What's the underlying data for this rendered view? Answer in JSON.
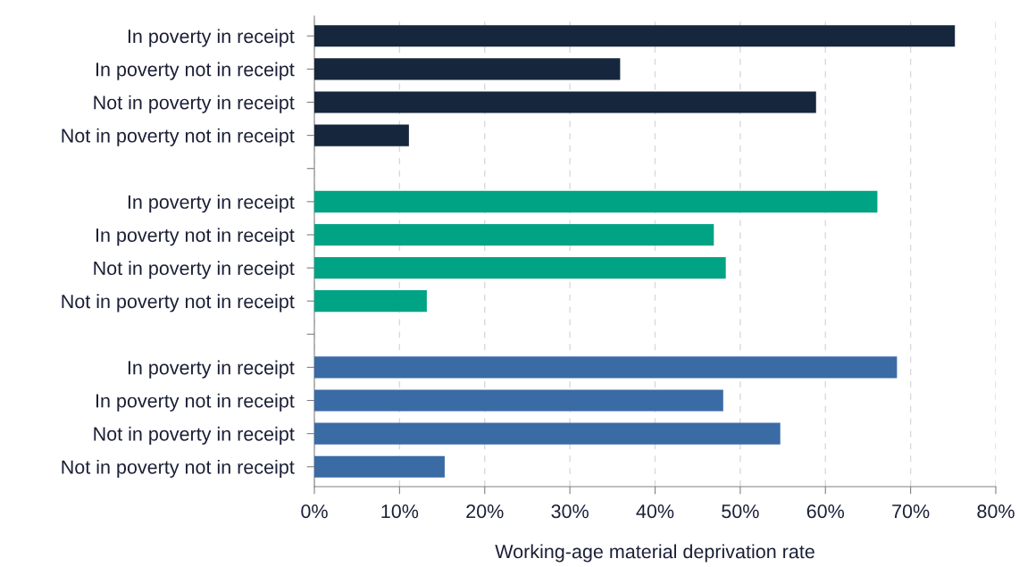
{
  "chart_data": {
    "type": "bar",
    "orientation": "horizontal",
    "xlabel": "Working-age material deprivation rate",
    "categories": [
      "In poverty in receipt",
      "In poverty not in receipt",
      "Not in poverty in receipt",
      "Not in poverty not in receipt",
      null,
      "In poverty in receipt",
      "In poverty not in receipt",
      "Not in poverty in receipt",
      "Not in poverty not in receipt",
      null,
      "In poverty in receipt",
      "In poverty not in receipt",
      "Not in poverty in receipt",
      "Not in poverty not in receipt"
    ],
    "values": [
      75.2,
      35.9,
      58.9,
      11.1,
      null,
      66.1,
      46.9,
      48.3,
      13.2,
      null,
      68.4,
      48.0,
      54.7,
      15.3
    ],
    "colors": [
      "#16263d",
      "#16263d",
      "#16263d",
      "#16263d",
      "#16263d",
      "#00a383",
      "#00a383",
      "#00a383",
      "#00a383",
      "#00a383",
      "#3a6ba5",
      "#3a6ba5",
      "#3a6ba5",
      "#3a6ba5"
    ],
    "xlim": [
      0,
      80
    ],
    "xticks": [
      {
        "value": 0,
        "label": "0%"
      },
      {
        "value": 10,
        "label": "10%"
      },
      {
        "value": 20,
        "label": "20%"
      },
      {
        "value": 30,
        "label": "30%"
      },
      {
        "value": 40,
        "label": "40%"
      },
      {
        "value": 50,
        "label": "50%"
      },
      {
        "value": 60,
        "label": "60%"
      },
      {
        "value": 70,
        "label": "70%"
      },
      {
        "value": 80,
        "label": "80%"
      }
    ],
    "grid": "x",
    "legend": false
  }
}
